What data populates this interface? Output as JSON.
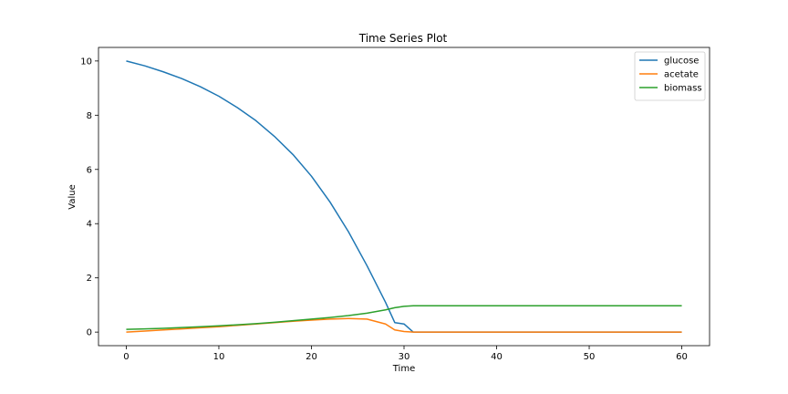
{
  "chart_data": {
    "type": "line",
    "title": "Time Series Plot",
    "xlabel": "Time",
    "ylabel": "Value",
    "xlim": [
      -3,
      63
    ],
    "ylim": [
      -0.5,
      10.5
    ],
    "xticks": [
      0,
      10,
      20,
      30,
      40,
      50,
      60
    ],
    "yticks": [
      0,
      2,
      4,
      6,
      8,
      10
    ],
    "grid": false,
    "legend": "top-right",
    "x": [
      0,
      2,
      4,
      6,
      8,
      10,
      12,
      14,
      16,
      18,
      20,
      22,
      24,
      26,
      28,
      29,
      30,
      31,
      32,
      34,
      36,
      38,
      40,
      45,
      50,
      55,
      60
    ],
    "series": [
      {
        "name": "glucose",
        "color": "#1f77b4",
        "values": [
          10.0,
          9.82,
          9.6,
          9.35,
          9.05,
          8.7,
          8.28,
          7.8,
          7.22,
          6.55,
          5.75,
          4.8,
          3.7,
          2.45,
          1.1,
          0.35,
          0.3,
          0.0,
          0.0,
          0.0,
          0.0,
          0.0,
          0.0,
          0.0,
          0.0,
          0.0,
          0.0
        ]
      },
      {
        "name": "acetate",
        "color": "#ff7f0e",
        "values": [
          0.0,
          0.04,
          0.08,
          0.12,
          0.16,
          0.2,
          0.25,
          0.3,
          0.35,
          0.4,
          0.44,
          0.48,
          0.5,
          0.48,
          0.3,
          0.08,
          0.02,
          0.0,
          0.0,
          0.0,
          0.0,
          0.0,
          0.0,
          0.0,
          0.0,
          0.0,
          0.0
        ]
      },
      {
        "name": "biomass",
        "color": "#2ca02c",
        "values": [
          0.1,
          0.12,
          0.14,
          0.17,
          0.2,
          0.23,
          0.27,
          0.31,
          0.36,
          0.42,
          0.48,
          0.54,
          0.61,
          0.7,
          0.82,
          0.9,
          0.95,
          0.97,
          0.97,
          0.97,
          0.97,
          0.97,
          0.97,
          0.97,
          0.97,
          0.97,
          0.97
        ]
      }
    ]
  }
}
